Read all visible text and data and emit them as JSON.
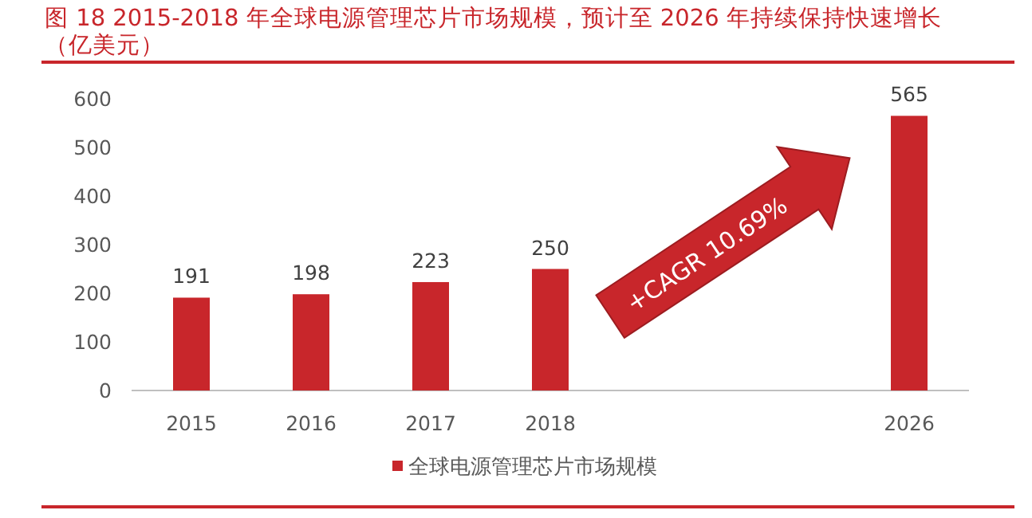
{
  "chart_data": {
    "type": "bar",
    "title": "图 18 2015-2018 年全球电源管理芯片市场规模，预计至 2026 年持续保持快速增长（亿美元）",
    "categories": [
      "2015",
      "2016",
      "2017",
      "2018",
      null,
      null,
      "2026"
    ],
    "series": [
      {
        "name": "全球电源管理芯片市场规模",
        "color": "#c8262b",
        "values": [
          191,
          198,
          223,
          250,
          null,
          null,
          565
        ]
      }
    ],
    "ylim": [
      0,
      600
    ],
    "yticks": [
      0,
      100,
      200,
      300,
      400,
      500,
      600
    ],
    "data_labels": true,
    "legend": "bottom",
    "grid": false,
    "annotations": [
      "+CAGR 10.69%"
    ]
  }
}
